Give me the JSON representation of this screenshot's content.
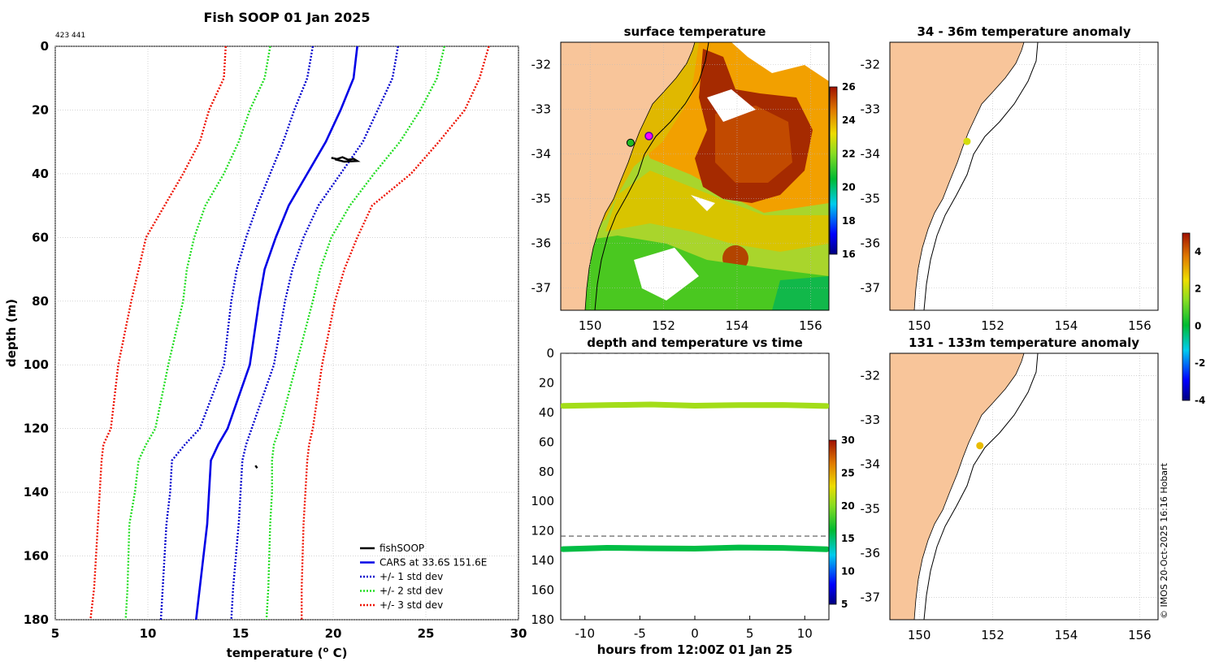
{
  "figure": {
    "title": "Fish SOOP 01 Jan 2025",
    "id_label": "423 441",
    "credit": "© IMOS 20-Oct-2025 16:16 Hobart"
  },
  "colors": {
    "land": "#f8c59a",
    "cars": "#0000e6",
    "std1": "#0000cc",
    "std2": "#22dd22",
    "std3": "#ee1100",
    "fish": "#000000",
    "grid": "#bbbbbb"
  },
  "chart_data": [
    {
      "id": "profile",
      "type": "line",
      "title": "Fish SOOP 01 Jan 2025",
      "xlabel": "temperature (",
      "xlabel_sup": "o",
      "xlabel_end": " C)",
      "ylabel": "depth (m)",
      "xlim": [
        5,
        30
      ],
      "ylim": [
        0,
        180
      ],
      "y_reversed": true,
      "xticks": [
        5,
        10,
        15,
        20,
        25,
        30
      ],
      "yticks": [
        0,
        20,
        40,
        60,
        80,
        100,
        120,
        140,
        160,
        180
      ],
      "grid": true,
      "legend_position": "bottom-right",
      "legend": [
        "fishSOOP",
        "CARS at 33.6S 151.6E",
        "+/- 1 std dev",
        "+/- 2 std dev",
        "+/- 3 std dev"
      ],
      "depth": [
        0,
        10,
        20,
        30,
        40,
        50,
        60,
        70,
        80,
        100,
        120,
        125,
        130,
        140,
        150,
        170,
        180
      ],
      "series": [
        {
          "name": "CARS mean",
          "style": "solid",
          "color_key": "cars",
          "values": [
            21.3,
            21.1,
            20.4,
            19.6,
            18.6,
            17.6,
            16.9,
            16.3,
            16.0,
            15.5,
            14.3,
            13.8,
            13.4,
            13.3,
            13.2,
            12.8,
            12.6
          ]
        },
        {
          "name": "+1 std",
          "style": "dotted",
          "color_key": "std1",
          "values": [
            23.5,
            23.2,
            22.4,
            21.6,
            20.4,
            19.2,
            18.4,
            17.8,
            17.4,
            16.8,
            15.6,
            15.3,
            15.1,
            15.0,
            14.9,
            14.6,
            14.5
          ]
        },
        {
          "name": "-1 std",
          "style": "dotted",
          "color_key": "std1",
          "values": [
            18.9,
            18.6,
            17.9,
            17.3,
            16.6,
            15.9,
            15.3,
            14.8,
            14.5,
            14.1,
            12.8,
            12.0,
            11.3,
            11.2,
            11.0,
            10.8,
            10.7
          ]
        },
        {
          "name": "+2 std",
          "style": "dotted",
          "color_key": "std2",
          "values": [
            26.0,
            25.6,
            24.7,
            23.6,
            22.2,
            20.9,
            19.9,
            19.3,
            18.9,
            18.0,
            17.1,
            16.8,
            16.7,
            16.7,
            16.6,
            16.5,
            16.4
          ]
        },
        {
          "name": "-2 std",
          "style": "dotted",
          "color_key": "std2",
          "values": [
            16.6,
            16.3,
            15.5,
            14.9,
            14.1,
            13.1,
            12.5,
            12.1,
            11.9,
            11.1,
            10.4,
            9.9,
            9.5,
            9.3,
            9.0,
            8.9,
            8.8
          ]
        },
        {
          "name": "+3 std",
          "style": "dotted",
          "color_key": "std3",
          "values": [
            28.4,
            27.9,
            27.1,
            25.7,
            24.2,
            22.1,
            21.3,
            20.6,
            20.1,
            19.4,
            18.9,
            18.7,
            18.6,
            18.5,
            18.4,
            18.3,
            18.3
          ]
        },
        {
          "name": "-3 std",
          "style": "dotted",
          "color_key": "std3",
          "values": [
            14.2,
            14.1,
            13.3,
            12.8,
            11.9,
            10.9,
            9.9,
            9.5,
            9.1,
            8.4,
            8.0,
            7.6,
            7.5,
            7.4,
            7.3,
            7.1,
            6.9
          ]
        }
      ],
      "fish_clusters": [
        {
          "temperature": [
            19.9,
            20.2,
            20.5,
            20.8,
            21.1,
            21.3,
            20.6,
            20.1
          ],
          "depth": [
            35.0,
            35.4,
            34.8,
            35.6,
            35.3,
            36.0,
            36.2,
            35.5
          ]
        },
        {
          "temperature": [
            15.8,
            15.9,
            15.85
          ],
          "depth": [
            131.6,
            132.4,
            132.0
          ]
        }
      ]
    },
    {
      "id": "surface_map",
      "type": "heatmap",
      "title": "surface temperature",
      "xlim": [
        149.2,
        156.5
      ],
      "ylim": [
        -37.5,
        -31.5
      ],
      "xticks": [
        150,
        152,
        154,
        156
      ],
      "yticks": [
        -32,
        -33,
        -34,
        -35,
        -36,
        -37
      ],
      "colorbar": {
        "min": 16,
        "max": 26,
        "ticks": [
          16,
          18,
          20,
          22,
          24,
          26
        ]
      },
      "markers": [
        {
          "lon": 151.6,
          "lat": -33.6,
          "label": "magenta ring"
        },
        {
          "lon": 151.1,
          "lat": -33.75,
          "label": "green dot"
        }
      ]
    },
    {
      "id": "time_series",
      "type": "scatter",
      "title": "depth and temperature vs time",
      "xlabel": "hours from 12:00Z 01 Jan 25",
      "xlim": [
        -12.2,
        12.2
      ],
      "ylim": [
        0,
        180
      ],
      "y_reversed": true,
      "xticks": [
        -10,
        -5,
        0,
        5,
        10
      ],
      "yticks": [
        0,
        20,
        40,
        60,
        80,
        100,
        120,
        140,
        160,
        180
      ],
      "reference_depths": [
        0,
        123.5
      ],
      "colorbar": {
        "min": 5,
        "max": 30,
        "ticks": [
          5,
          10,
          15,
          20,
          25,
          30
        ]
      },
      "series": [
        {
          "name": "shallow logger",
          "temperature": 20.8,
          "hours": [
            -12,
            -8,
            -4,
            0,
            4,
            8,
            12
          ],
          "depth": [
            35.5,
            35.0,
            34.6,
            35.4,
            35.0,
            34.9,
            35.6
          ]
        },
        {
          "name": "deep logger",
          "temperature": 15.9,
          "hours": [
            -12,
            -8,
            -4,
            0,
            4,
            8,
            12
          ],
          "depth": [
            132.3,
            131.4,
            131.8,
            132.0,
            131.2,
            131.5,
            132.4
          ]
        }
      ]
    },
    {
      "id": "anom_36",
      "type": "scatter",
      "title": "34 - 36m temperature anomaly",
      "xlim": [
        149.2,
        156.5
      ],
      "ylim": [
        -37.5,
        -31.5
      ],
      "xticks": [
        150,
        152,
        154,
        156
      ],
      "yticks": [
        -32,
        -33,
        -34,
        -35,
        -36,
        -37
      ],
      "points": [
        {
          "lon": 151.3,
          "lat": -33.72,
          "anomaly": 2.2
        }
      ]
    },
    {
      "id": "anom_133",
      "type": "scatter",
      "title": "131 - 133m temperature anomaly",
      "xlim": [
        149.2,
        156.5
      ],
      "ylim": [
        -37.5,
        -31.5
      ],
      "xticks": [
        150,
        152,
        154,
        156
      ],
      "yticks": [
        -32,
        -33,
        -34,
        -35,
        -36,
        -37
      ],
      "points": [
        {
          "lon": 151.65,
          "lat": -33.58,
          "anomaly": 2.9
        }
      ],
      "colorbar": {
        "min": -4,
        "max": 5,
        "ticks": [
          -4,
          -2,
          0,
          2,
          4
        ]
      }
    }
  ]
}
